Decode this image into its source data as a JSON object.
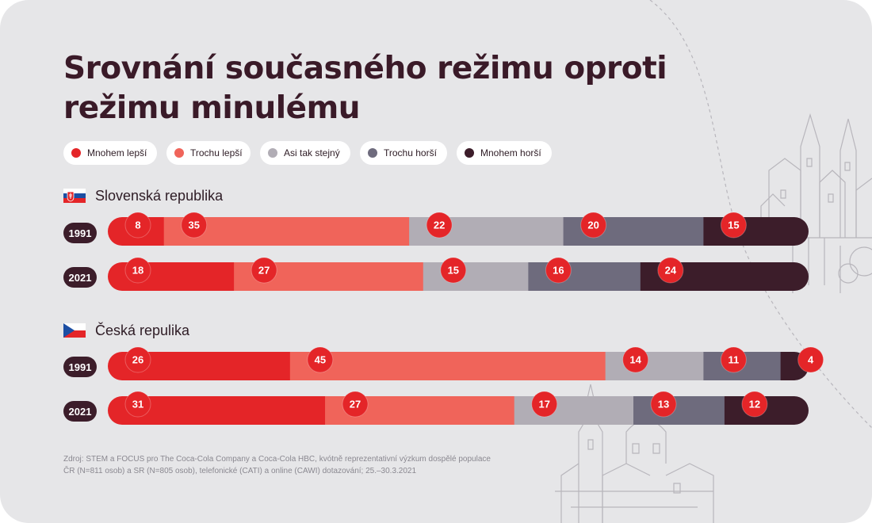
{
  "title": "Srovnání současného režimu oproti režimu minulému",
  "legend": [
    {
      "label": "Mnohem lepší",
      "color": "#e42528"
    },
    {
      "label": "Trochu lepší",
      "color": "#f0645a"
    },
    {
      "label": "Asi tak stejný",
      "color": "#b1adb5"
    },
    {
      "label": "Trochu horší",
      "color": "#6e6b7d"
    },
    {
      "label": "Mnohem horší",
      "color": "#3c1d2a"
    }
  ],
  "countries": [
    {
      "name": "Slovenská republika",
      "flag": "slovakia-flag-icon"
    },
    {
      "name": "Česká repulika",
      "flag": "czech-flag-icon"
    }
  ],
  "chart_data": {
    "type": "bar",
    "stacked": true,
    "orientation": "horizontal",
    "title": "Srovnání současného režimu oproti režimu minulému",
    "groups": [
      "Slovenská republika",
      "Česká repulika"
    ],
    "categories": [
      "1991",
      "2021"
    ],
    "unit": "%",
    "series": [
      {
        "name": "Mnohem lepší",
        "color": "#e42528",
        "values": {
          "Slovenská republika": [
            8,
            18
          ],
          "Česká repulika": [
            26,
            31
          ]
        }
      },
      {
        "name": "Trochu lepší",
        "color": "#f0645a",
        "values": {
          "Slovenská republika": [
            35,
            27
          ],
          "Česká repulika": [
            45,
            27
          ]
        }
      },
      {
        "name": "Asi tak stejný",
        "color": "#b1adb5",
        "values": {
          "Slovenská republika": [
            22,
            15
          ],
          "Česká repulika": [
            14,
            17
          ]
        }
      },
      {
        "name": "Trochu horší",
        "color": "#6e6b7d",
        "values": {
          "Slovenská republika": [
            20,
            16
          ],
          "Česká repulika": [
            11,
            13
          ]
        }
      },
      {
        "name": "Mnohem horší",
        "color": "#3c1d2a",
        "values": {
          "Slovenská republika": [
            15,
            24
          ],
          "Česká repulika": [
            4,
            12
          ]
        }
      }
    ]
  },
  "source": {
    "line1": "Zdroj: STEM a FOCUS pro The Coca-Cola Company a Coca-Cola HBC, kvótně reprezentativní výzkum dospělé populace",
    "line2": "ČR (N=811 osob) a SR (N=805 osob), telefonické (CATI) a online (CAWI) dotazování; 25.–30.3.2021"
  }
}
